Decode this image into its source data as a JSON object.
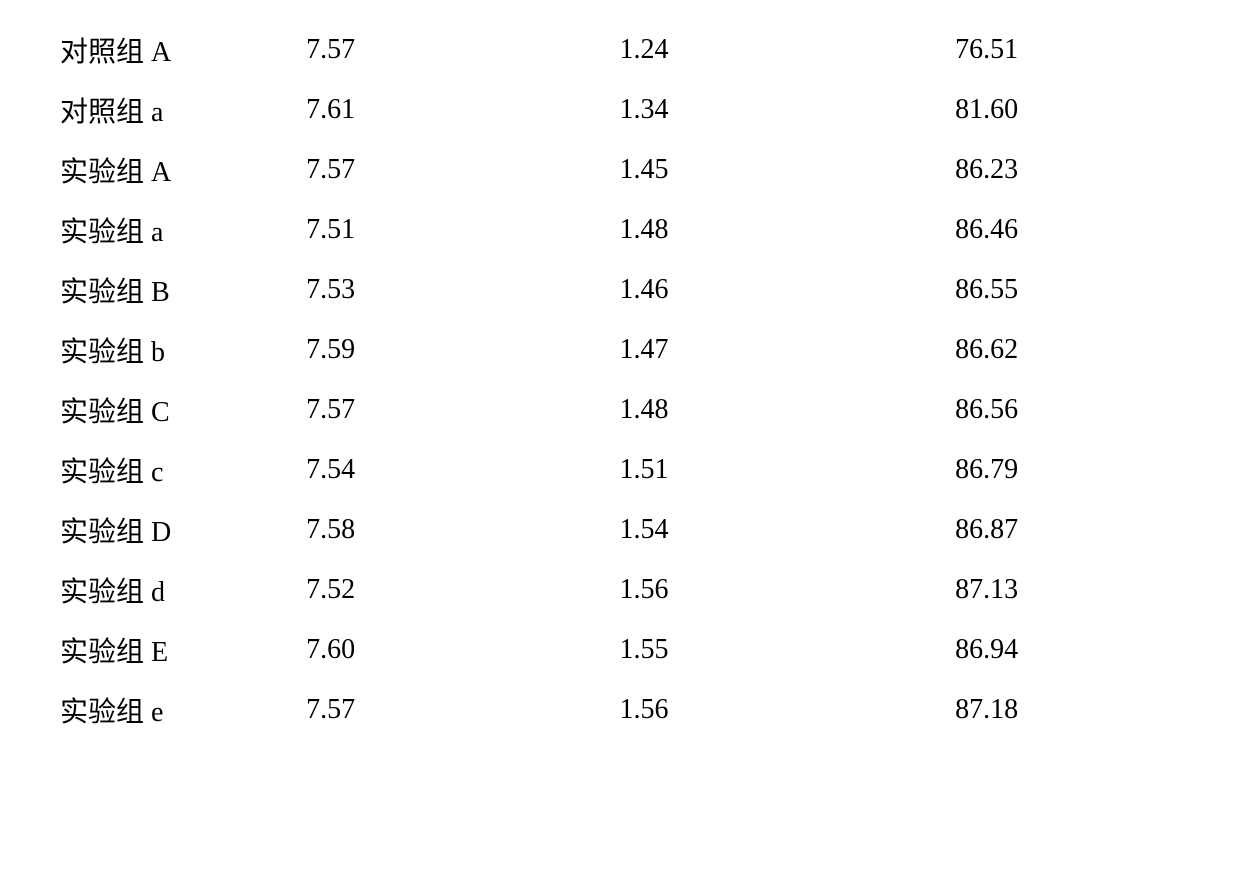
{
  "table": {
    "type": "table",
    "background_color": "#ffffff",
    "text_color": "#000000",
    "font_size_pt": 21,
    "font_family": "SimSun",
    "columns": [
      "group",
      "value1",
      "value2",
      "value3"
    ],
    "column_widths_pct": [
      22,
      28,
      30,
      20
    ],
    "column_alignment": [
      "left",
      "left",
      "left",
      "left"
    ],
    "rows": [
      {
        "group": "对照组 A",
        "value1": "7.57",
        "value2": "1.24",
        "value3": "76.51"
      },
      {
        "group": "对照组 a",
        "value1": "7.61",
        "value2": "1.34",
        "value3": "81.60"
      },
      {
        "group": "实验组 A",
        "value1": "7.57",
        "value2": "1.45",
        "value3": "86.23"
      },
      {
        "group": "实验组 a",
        "value1": "7.51",
        "value2": "1.48",
        "value3": "86.46"
      },
      {
        "group": "实验组 B",
        "value1": "7.53",
        "value2": "1.46",
        "value3": "86.55"
      },
      {
        "group": "实验组 b",
        "value1": "7.59",
        "value2": "1.47",
        "value3": "86.62"
      },
      {
        "group": "实验组 C",
        "value1": "7.57",
        "value2": "1.48",
        "value3": "86.56"
      },
      {
        "group": "实验组 c",
        "value1": "7.54",
        "value2": "1.51",
        "value3": "86.79"
      },
      {
        "group": "实验组 D",
        "value1": "7.58",
        "value2": "1.54",
        "value3": "86.87"
      },
      {
        "group": "实验组 d",
        "value1": "7.52",
        "value2": "1.56",
        "value3": "87.13"
      },
      {
        "group": "实验组 E",
        "value1": "7.60",
        "value2": "1.55",
        "value3": "86.94"
      },
      {
        "group": "实验组 e",
        "value1": "7.57",
        "value2": "1.56",
        "value3": "87.18"
      }
    ]
  }
}
